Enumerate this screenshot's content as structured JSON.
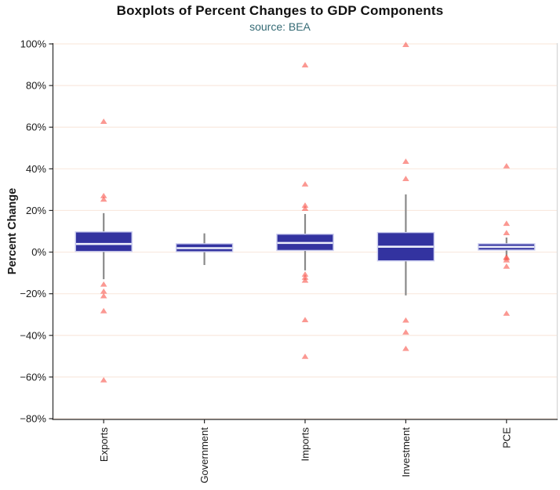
{
  "header": {
    "title": "Boxplots of Percent Changes to GDP Components",
    "subtitle": "source: BEA"
  },
  "style": {
    "title_color": "#111111",
    "subtitle_color": "#356b75",
    "text_color": "#1a1a1a",
    "axis_color": "#2a2a2a",
    "panel_border_color": "#d9d9d9",
    "gridline_color": "#f9e9df",
    "box_fill": "#3333a0",
    "box_border": "#c9cbee",
    "median_color": "#edeffb",
    "whisker_color": "#8a8a8a",
    "outlier_color": "#f8544a",
    "outlier_alpha": 0.6
  },
  "chart_data": {
    "type": "boxplot",
    "title": "Boxplots of Percent Changes to GDP Components",
    "subtitle": "source: BEA",
    "ylabel": "Percent Change",
    "ylim": [
      -80,
      100
    ],
    "grid": true,
    "legend": false,
    "yticks": [
      100,
      80,
      60,
      40,
      20,
      0,
      -20,
      -40,
      -60,
      -80
    ],
    "ytick_labels": [
      "100%",
      "80%",
      "60%",
      "40%",
      "20%",
      "0%",
      "−20%",
      "−40%",
      "−60%",
      "−80%"
    ],
    "categories": [
      "Exports",
      "Government",
      "Imports",
      "Investment",
      "PCE"
    ],
    "series": [
      {
        "name": "Exports",
        "whisker_low": -13.0,
        "q1": 0.3,
        "median": 3.9,
        "q3": 9.7,
        "whisker_high": 18.7,
        "outliers": [
          62.7,
          27.0,
          25.3,
          -15.5,
          -18.9,
          -21.1,
          -28.3,
          -61.5
        ]
      },
      {
        "name": "Government",
        "whisker_low": -6.2,
        "q1": 0.2,
        "median": 1.9,
        "q3": 4.0,
        "whisker_high": 9.0,
        "outliers": []
      },
      {
        "name": "Imports",
        "whisker_low": -8.8,
        "q1": 0.8,
        "median": 4.4,
        "q3": 8.6,
        "whisker_high": 18.3,
        "outliers": [
          89.8,
          32.6,
          22.4,
          20.9,
          -10.7,
          -12.2,
          -13.6,
          -32.6,
          -50.2
        ]
      },
      {
        "name": "Investment",
        "whisker_low": -20.8,
        "q1": -4.2,
        "median": 2.6,
        "q3": 9.4,
        "whisker_high": 27.7,
        "outliers": [
          99.6,
          43.5,
          35.2,
          -32.8,
          -38.5,
          -46.4
        ]
      },
      {
        "name": "PCE",
        "whisker_low": -2.0,
        "q1": 1.0,
        "median": 2.5,
        "q3": 4.0,
        "whisker_high": 7.0,
        "outliers": [
          41.3,
          13.7,
          9.2,
          -2.4,
          -2.9,
          -3.9,
          -6.9,
          -29.5
        ]
      }
    ]
  }
}
